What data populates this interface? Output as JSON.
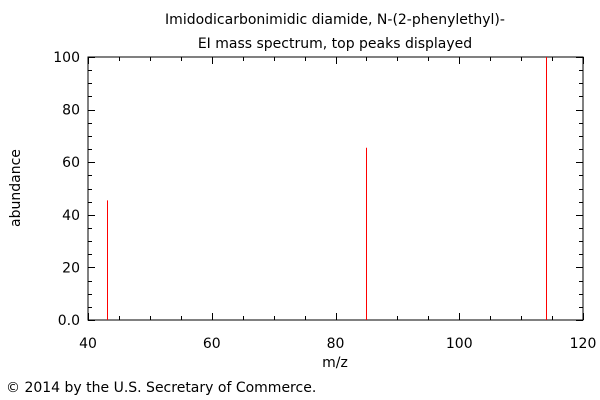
{
  "chart_data": {
    "type": "bar",
    "title_line1": "Imidodicarbonimidic diamide, N-(2-phenylethyl)-",
    "title_line2": "EI mass spectrum, top peaks displayed",
    "xlabel": "m/z",
    "ylabel": "abundance",
    "xlim": [
      40,
      120
    ],
    "ylim": [
      0,
      100
    ],
    "x_ticks": [
      "40",
      "60",
      "80",
      "100",
      "120"
    ],
    "y_ticks": [
      "0.0",
      "20",
      "40",
      "60",
      "80",
      "100"
    ],
    "peaks": [
      {
        "mz": 43,
        "abundance": 45.5
      },
      {
        "mz": 85,
        "abundance": 65.5
      },
      {
        "mz": 114,
        "abundance": 100
      }
    ],
    "peak_color": "#ff0000",
    "grid": false
  },
  "footer": {
    "copyright": "© 2014 by the U.S. Secretary of Commerce."
  }
}
